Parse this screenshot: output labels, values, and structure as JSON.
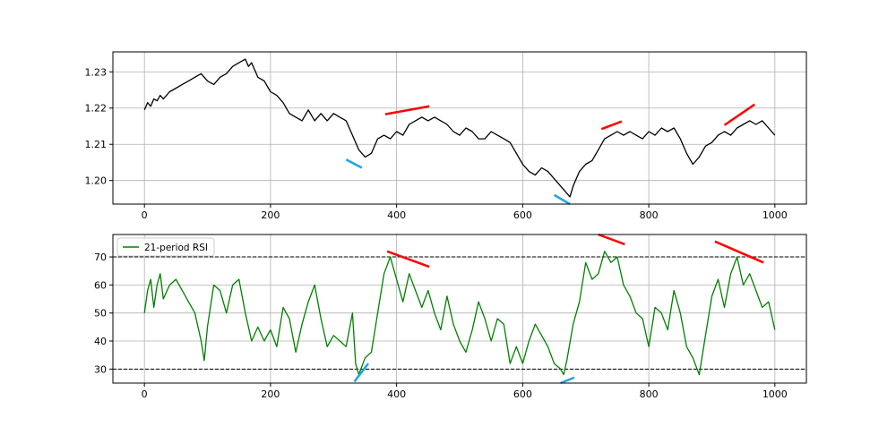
{
  "chart_data": [
    {
      "type": "line",
      "title": "",
      "xlabel": "",
      "ylabel": "",
      "xlim": [
        -50,
        1050
      ],
      "ylim": [
        1.1935,
        1.2355
      ],
      "xticks": [
        0,
        200,
        400,
        600,
        800,
        1000
      ],
      "yticks": [
        1.2,
        1.21,
        1.22,
        1.23
      ],
      "xtick_labels": [
        "0",
        "200",
        "400",
        "600",
        "800",
        "1000"
      ],
      "ytick_labels": [
        "1.20",
        "1.21",
        "1.22",
        "1.23"
      ],
      "grid": true,
      "series": [
        {
          "color": "#000000",
          "x": [
            0,
            5,
            10,
            15,
            20,
            25,
            30,
            40,
            50,
            60,
            70,
            80,
            90,
            100,
            110,
            120,
            130,
            140,
            150,
            160,
            165,
            170,
            180,
            190,
            200,
            210,
            220,
            230,
            240,
            250,
            260,
            270,
            280,
            290,
            300,
            310,
            320,
            330,
            340,
            350,
            360,
            370,
            380,
            390,
            400,
            410,
            420,
            430,
            440,
            450,
            460,
            470,
            480,
            490,
            500,
            510,
            520,
            530,
            540,
            550,
            560,
            570,
            580,
            590,
            600,
            610,
            620,
            630,
            640,
            650,
            660,
            670,
            675,
            680,
            690,
            700,
            710,
            720,
            730,
            740,
            750,
            760,
            770,
            780,
            790,
            800,
            810,
            820,
            830,
            840,
            850,
            860,
            870,
            880,
            890,
            900,
            910,
            920,
            930,
            940,
            950,
            960,
            970,
            980,
            990,
            1000
          ],
          "values": [
            1.2195,
            1.2215,
            1.2205,
            1.2225,
            1.222,
            1.2235,
            1.2225,
            1.2245,
            1.2255,
            1.2265,
            1.2275,
            1.2285,
            1.2295,
            1.2275,
            1.2265,
            1.2285,
            1.2295,
            1.2315,
            1.2325,
            1.2335,
            1.2315,
            1.2325,
            1.2285,
            1.2275,
            1.2245,
            1.2235,
            1.2215,
            1.2185,
            1.2175,
            1.2165,
            1.2195,
            1.2165,
            1.2185,
            1.2165,
            1.2185,
            1.2175,
            1.2165,
            1.2125,
            1.2085,
            1.2065,
            1.2075,
            1.2115,
            1.2125,
            1.2115,
            1.2135,
            1.2125,
            1.2155,
            1.2165,
            1.2175,
            1.2165,
            1.2175,
            1.2165,
            1.2155,
            1.2135,
            1.2125,
            1.2145,
            1.2135,
            1.2115,
            1.2115,
            1.2135,
            1.2125,
            1.2115,
            1.2105,
            1.2075,
            1.2045,
            1.2025,
            1.2015,
            1.2035,
            1.2025,
            1.2005,
            1.1985,
            1.1965,
            1.1955,
            1.1985,
            1.2025,
            1.2045,
            1.2055,
            1.2085,
            1.2115,
            1.2125,
            1.2135,
            1.2125,
            1.2135,
            1.2125,
            1.2115,
            1.2135,
            1.2125,
            1.2145,
            1.2135,
            1.2145,
            1.2115,
            1.2075,
            1.2045,
            1.2065,
            1.2095,
            1.2105,
            1.2125,
            1.2135,
            1.2125,
            1.2145,
            1.2155,
            1.2165,
            1.2155,
            1.2165,
            1.2145,
            1.2125
          ]
        }
      ],
      "annotations": [
        {
          "color": "#ff0000",
          "x": [
            382,
            452
          ],
          "y": [
            1.2183,
            1.2205
          ]
        },
        {
          "color": "#ff0000",
          "x": [
            725,
            757
          ],
          "y": [
            1.2142,
            1.2163
          ]
        },
        {
          "color": "#ff0000",
          "x": [
            920,
            968
          ],
          "y": [
            1.2153,
            1.221
          ]
        },
        {
          "color": "#1ea7e1",
          "x": [
            320,
            345
          ],
          "y": [
            1.2058,
            1.2035
          ]
        },
        {
          "color": "#1ea7e1",
          "x": [
            650,
            675
          ],
          "y": [
            1.196,
            1.1935
          ]
        }
      ]
    },
    {
      "type": "line",
      "title": "",
      "xlabel": "",
      "ylabel": "",
      "xlim": [
        -50,
        1050
      ],
      "ylim": [
        25,
        78
      ],
      "xticks": [
        0,
        200,
        400,
        600,
        800,
        1000
      ],
      "yticks": [
        30,
        40,
        50,
        60,
        70
      ],
      "xtick_labels": [
        "0",
        "200",
        "400",
        "600",
        "800",
        "1000"
      ],
      "ytick_labels": [
        "30",
        "40",
        "50",
        "60",
        "70"
      ],
      "grid": true,
      "hlines": [
        30,
        70
      ],
      "legend": {
        "position": "top-left",
        "entries": [
          "21-period RSI"
        ]
      },
      "series": [
        {
          "name": "21-period RSI",
          "color": "#008000",
          "x": [
            0,
            5,
            10,
            15,
            20,
            25,
            30,
            40,
            50,
            60,
            70,
            80,
            90,
            95,
            100,
            110,
            120,
            130,
            140,
            150,
            160,
            170,
            180,
            190,
            200,
            210,
            220,
            230,
            240,
            250,
            260,
            270,
            280,
            290,
            300,
            310,
            320,
            330,
            335,
            340,
            350,
            360,
            370,
            380,
            390,
            400,
            410,
            420,
            430,
            440,
            450,
            460,
            470,
            480,
            490,
            500,
            510,
            520,
            530,
            540,
            550,
            560,
            570,
            580,
            590,
            600,
            610,
            620,
            630,
            640,
            650,
            660,
            665,
            670,
            680,
            690,
            700,
            710,
            720,
            730,
            740,
            750,
            760,
            770,
            780,
            790,
            800,
            810,
            820,
            830,
            840,
            850,
            860,
            870,
            880,
            890,
            900,
            910,
            920,
            930,
            940,
            950,
            960,
            970,
            980,
            990,
            1000
          ],
          "values": [
            50,
            58,
            62,
            52,
            60,
            64,
            55,
            60,
            62,
            58,
            54,
            50,
            40,
            33,
            45,
            60,
            58,
            50,
            60,
            62,
            50,
            40,
            45,
            40,
            44,
            38,
            52,
            48,
            36,
            46,
            54,
            60,
            48,
            38,
            42,
            40,
            38,
            50,
            32,
            28,
            34,
            36,
            50,
            64,
            70,
            62,
            54,
            64,
            58,
            52,
            58,
            50,
            44,
            56,
            46,
            40,
            36,
            44,
            54,
            48,
            40,
            48,
            46,
            32,
            38,
            32,
            40,
            46,
            42,
            38,
            32,
            30,
            28,
            33,
            46,
            54,
            68,
            62,
            64,
            72,
            68,
            70,
            60,
            56,
            50,
            48,
            38,
            52,
            50,
            44,
            58,
            50,
            38,
            34,
            28,
            42,
            56,
            62,
            52,
            64,
            70,
            60,
            64,
            58,
            52,
            54,
            44
          ]
        }
      ],
      "annotations": [
        {
          "color": "#ff0000",
          "x": [
            385,
            452
          ],
          "y": [
            72,
            66.5
          ]
        },
        {
          "color": "#ff0000",
          "x": [
            720,
            762
          ],
          "y": [
            78,
            74.5
          ]
        },
        {
          "color": "#ff0000",
          "x": [
            905,
            982
          ],
          "y": [
            75.5,
            68
          ]
        },
        {
          "color": "#1ea7e1",
          "x": [
            333,
            355
          ],
          "y": [
            25.5,
            32
          ]
        },
        {
          "color": "#1ea7e1",
          "x": [
            660,
            682
          ],
          "y": [
            25,
            27
          ]
        }
      ]
    }
  ]
}
